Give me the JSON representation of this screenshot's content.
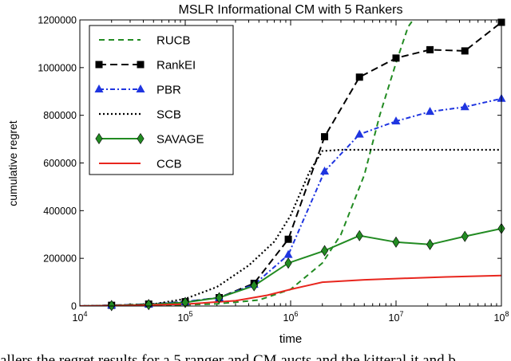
{
  "chart_data": {
    "type": "line",
    "title": "MSLR Informational CM with 5 Rankers",
    "xlabel": "time",
    "ylabel": "cumulative regret",
    "xscale": "log",
    "xlim": [
      10000,
      100000000
    ],
    "ylim": [
      0,
      1200000
    ],
    "x_ticks": [
      {
        "value": 10000,
        "base": "10",
        "exp": "4"
      },
      {
        "value": 100000,
        "base": "10",
        "exp": "5"
      },
      {
        "value": 1000000,
        "base": "10",
        "exp": "6"
      },
      {
        "value": 10000000,
        "base": "10",
        "exp": "7"
      },
      {
        "value": 100000000,
        "base": "10",
        "exp": "8"
      }
    ],
    "y_ticks": [
      0,
      200000,
      400000,
      600000,
      800000,
      1000000,
      1200000
    ],
    "y_tick_labels": [
      "0",
      "200000",
      "400000",
      "600000",
      "800000",
      "1000000",
      "1200000"
    ],
    "legend_position": "top-left",
    "series": [
      {
        "name": "RUCB",
        "color": "#228b22",
        "dash": "7,5",
        "marker": "none",
        "x": [
          10000,
          20000,
          50000,
          100000,
          200000,
          500000,
          1000000,
          2000000,
          3000000,
          5000000,
          7000000,
          10000000,
          13000000,
          14500000
        ],
        "y": [
          0,
          1000,
          3000,
          5000,
          9000,
          25000,
          70000,
          180000,
          300000,
          550000,
          800000,
          1020000,
          1170000,
          1200000
        ]
      },
      {
        "name": "RankEI",
        "color": "#000000",
        "dash": "9,5",
        "marker": "square",
        "x": [
          10000,
          20000,
          45000,
          100000,
          210000,
          450000,
          950000,
          2100000,
          4500000,
          10000000,
          21000000,
          45000000,
          100000000
        ],
        "y": [
          0,
          3000,
          8000,
          18000,
          35000,
          95000,
          280000,
          710000,
          960000,
          1040000,
          1075000,
          1070000,
          1190000
        ]
      },
      {
        "name": "PBR",
        "color": "#1f35e0",
        "dash": "6,3,2,3",
        "marker": "triangle",
        "x": [
          10000,
          20000,
          45000,
          100000,
          210000,
          450000,
          950000,
          2100000,
          4500000,
          10000000,
          21000000,
          45000000,
          100000000
        ],
        "y": [
          0,
          3000,
          7000,
          18000,
          35000,
          90000,
          215000,
          565000,
          720000,
          775000,
          815000,
          835000,
          870000
        ]
      },
      {
        "name": "SCB",
        "color": "#000000",
        "dash": "2,3",
        "marker": "none",
        "x": [
          10000,
          20000,
          50000,
          100000,
          200000,
          400000,
          700000,
          1000000,
          1500000,
          2000000,
          3000000,
          10000000,
          30000000,
          100000000
        ],
        "y": [
          0,
          2000,
          8000,
          30000,
          80000,
          170000,
          270000,
          380000,
          560000,
          650000,
          655000,
          655000,
          655000,
          655000
        ]
      },
      {
        "name": "SAVAGE",
        "color": "#228b22",
        "dash": "none",
        "marker": "diamond",
        "x": [
          10000,
          20000,
          45000,
          100000,
          210000,
          450000,
          950000,
          2100000,
          4500000,
          10000000,
          21000000,
          45000000,
          100000000
        ],
        "y": [
          0,
          2000,
          6000,
          15000,
          35000,
          85000,
          180000,
          232000,
          295000,
          268000,
          258000,
          292000,
          325000
        ]
      },
      {
        "name": "CCB",
        "color": "#e8261e",
        "dash": "none",
        "marker": "none",
        "x": [
          10000,
          30000,
          100000,
          300000,
          600000,
          1000000,
          2000000,
          5000000,
          10000000,
          30000000,
          100000000
        ],
        "y": [
          0,
          2000,
          8000,
          22000,
          45000,
          70000,
          100000,
          110000,
          115000,
          122000,
          128000
        ]
      }
    ]
  },
  "caption_fragment": "allers the regret results for a 5 ranger and CM aucts and the kitteral it and b"
}
